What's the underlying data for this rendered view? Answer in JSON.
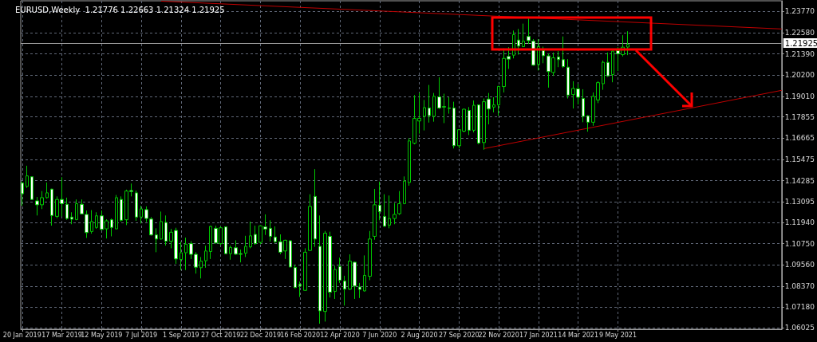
{
  "chart_data": {
    "type": "candlestick",
    "title": "EURUSD,Weekly  1.21776 1.22663 1.21324 1.21925",
    "color": "#00c800",
    "grid": true,
    "x": [
      "2019-01-20",
      "2019-01-27",
      "2019-02-03",
      "2019-02-10",
      "2019-02-17",
      "2019-02-24",
      "2019-03-03",
      "2019-03-10",
      "2019-03-17",
      "2019-03-24",
      "2019-03-31",
      "2019-04-07",
      "2019-04-14",
      "2019-04-21",
      "2019-04-28",
      "2019-05-05",
      "2019-05-12",
      "2019-05-19",
      "2019-05-26",
      "2019-06-02",
      "2019-06-09",
      "2019-06-16",
      "2019-06-23",
      "2019-06-30",
      "2019-07-07",
      "2019-07-14",
      "2019-07-21",
      "2019-07-28",
      "2019-08-04",
      "2019-08-11",
      "2019-08-18",
      "2019-08-25",
      "2019-09-01",
      "2019-09-08",
      "2019-09-15",
      "2019-09-22",
      "2019-09-29",
      "2019-10-06",
      "2019-10-13",
      "2019-10-20",
      "2019-10-27",
      "2019-11-03",
      "2019-11-10",
      "2019-11-17",
      "2019-11-24",
      "2019-12-01",
      "2019-12-08",
      "2019-12-15",
      "2019-12-22",
      "2019-12-29",
      "2020-01-05",
      "2020-01-12",
      "2020-01-19",
      "2020-01-26",
      "2020-02-02",
      "2020-02-09",
      "2020-02-16",
      "2020-02-23",
      "2020-03-01",
      "2020-03-08",
      "2020-03-15",
      "2020-03-22",
      "2020-03-29",
      "2020-04-05",
      "2020-04-12",
      "2020-04-19",
      "2020-04-26",
      "2020-05-03",
      "2020-05-10",
      "2020-05-17",
      "2020-05-24",
      "2020-05-31",
      "2020-06-07",
      "2020-06-14",
      "2020-06-21",
      "2020-06-28",
      "2020-07-05",
      "2020-07-12",
      "2020-07-19",
      "2020-07-26",
      "2020-08-02",
      "2020-08-09",
      "2020-08-16",
      "2020-08-23",
      "2020-08-30",
      "2020-09-06",
      "2020-09-13",
      "2020-09-20",
      "2020-09-27",
      "2020-10-04",
      "2020-10-11",
      "2020-10-18",
      "2020-10-25",
      "2020-11-01",
      "2020-11-08",
      "2020-11-15",
      "2020-11-22",
      "2020-11-29",
      "2020-12-06",
      "2020-12-13",
      "2020-12-20",
      "2020-12-27",
      "2021-01-03",
      "2021-01-10",
      "2021-01-17",
      "2021-01-24",
      "2021-01-31",
      "2021-02-07",
      "2021-02-14",
      "2021-02-21",
      "2021-02-28",
      "2021-03-07",
      "2021-03-14",
      "2021-03-21",
      "2021-03-28",
      "2021-04-04",
      "2021-04-11",
      "2021-04-18",
      "2021-04-25",
      "2021-05-02",
      "2021-05-09",
      "2021-05-16",
      "2021-05-23"
    ],
    "ohlc": [
      [
        1.1415,
        1.1423,
        1.1288,
        1.1355
      ],
      [
        1.1396,
        1.1512,
        1.1388,
        1.1455
      ],
      [
        1.145,
        1.1452,
        1.132,
        1.1323
      ],
      [
        1.1315,
        1.1337,
        1.1233,
        1.1293
      ],
      [
        1.1293,
        1.137,
        1.1269,
        1.1333
      ],
      [
        1.1333,
        1.1418,
        1.1328,
        1.136
      ],
      [
        1.1381,
        1.1383,
        1.1176,
        1.1233
      ],
      [
        1.1228,
        1.134,
        1.1218,
        1.1323
      ],
      [
        1.1323,
        1.1448,
        1.1228,
        1.1299
      ],
      [
        1.1296,
        1.1333,
        1.1209,
        1.1216
      ],
      [
        1.1224,
        1.1251,
        1.1184,
        1.1212
      ],
      [
        1.121,
        1.1323,
        1.1206,
        1.1299
      ],
      [
        1.1296,
        1.1323,
        1.124,
        1.1242
      ],
      [
        1.1239,
        1.1261,
        1.1107,
        1.1137
      ],
      [
        1.1143,
        1.1263,
        1.1131,
        1.1199
      ],
      [
        1.1166,
        1.1251,
        1.1158,
        1.1231
      ],
      [
        1.1231,
        1.1261,
        1.1149,
        1.1155
      ],
      [
        1.1158,
        1.1212,
        1.1104,
        1.1203
      ],
      [
        1.1209,
        1.1216,
        1.1116,
        1.1166
      ],
      [
        1.1158,
        1.1348,
        1.1156,
        1.1333
      ],
      [
        1.1323,
        1.134,
        1.1199,
        1.1206
      ],
      [
        1.1209,
        1.1378,
        1.1179,
        1.137
      ],
      [
        1.1373,
        1.1412,
        1.134,
        1.1367
      ],
      [
        1.136,
        1.1373,
        1.1203,
        1.1224
      ],
      [
        1.1224,
        1.1287,
        1.1188,
        1.127
      ],
      [
        1.1266,
        1.1284,
        1.1197,
        1.1216
      ],
      [
        1.1213,
        1.1224,
        1.112,
        1.1124
      ],
      [
        1.1124,
        1.1161,
        1.1027,
        1.1101
      ],
      [
        1.1101,
        1.1255,
        1.1098,
        1.1199
      ],
      [
        1.1194,
        1.1233,
        1.1064,
        1.1089
      ],
      [
        1.1089,
        1.1158,
        1.1049,
        1.1139
      ],
      [
        1.1149,
        1.1164,
        1.0962,
        1.0989
      ],
      [
        1.0986,
        1.1086,
        1.0927,
        1.1024
      ],
      [
        1.1024,
        1.1109,
        1.0927,
        1.1072
      ],
      [
        1.1075,
        1.1089,
        1.0989,
        1.1015
      ],
      [
        1.1015,
        1.1027,
        1.0907,
        1.0943
      ],
      [
        1.094,
        1.1,
        1.088,
        1.0977
      ],
      [
        1.0979,
        1.1064,
        1.094,
        1.1034
      ],
      [
        1.1031,
        1.1176,
        1.0989,
        1.1172
      ],
      [
        1.1161,
        1.1176,
        1.1075,
        1.1079
      ],
      [
        1.1075,
        1.1172,
        1.1067,
        1.1164
      ],
      [
        1.1169,
        1.1172,
        1.1016,
        1.1019
      ],
      [
        1.1019,
        1.1064,
        1.0985,
        1.1054
      ],
      [
        1.1052,
        1.1094,
        1.1012,
        1.1016
      ],
      [
        1.1019,
        1.1042,
        1.097,
        1.1015
      ],
      [
        1.1022,
        1.1119,
        1.1,
        1.106
      ],
      [
        1.1057,
        1.1199,
        1.1049,
        1.1119
      ],
      [
        1.1127,
        1.1176,
        1.1069,
        1.1075
      ],
      [
        1.1082,
        1.1178,
        1.1072,
        1.1175
      ],
      [
        1.1169,
        1.1239,
        1.1124,
        1.1157
      ],
      [
        1.1161,
        1.1206,
        1.1086,
        1.1116
      ],
      [
        1.1112,
        1.1172,
        1.1079,
        1.1086
      ],
      [
        1.1086,
        1.1127,
        1.1015,
        1.1027
      ],
      [
        1.1034,
        1.1097,
        1.0989,
        1.1094
      ],
      [
        1.1091,
        1.1094,
        1.0942,
        1.0944
      ],
      [
        1.0941,
        1.0957,
        1.0825,
        1.0829
      ],
      [
        1.0847,
        1.0862,
        1.0776,
        1.0837
      ],
      [
        1.0813,
        1.1049,
        1.081,
        1.1027
      ],
      [
        1.1037,
        1.1352,
        1.1034,
        1.1284
      ],
      [
        1.134,
        1.1493,
        1.1057,
        1.1101
      ],
      [
        1.106,
        1.1233,
        1.0626,
        1.0698
      ],
      [
        1.0695,
        1.1146,
        1.0638,
        1.1134
      ],
      [
        1.1116,
        1.1142,
        1.0773,
        1.0803
      ],
      [
        1.0807,
        1.0952,
        1.0765,
        1.093
      ],
      [
        1.0947,
        1.0997,
        1.0855,
        1.087
      ],
      [
        1.0865,
        1.0895,
        1.0728,
        1.082
      ],
      [
        1.082,
        1.1015,
        1.0815,
        1.0977
      ],
      [
        1.0971,
        1.0974,
        1.0765,
        1.0837
      ],
      [
        1.0832,
        1.0855,
        1.077,
        1.0818
      ],
      [
        1.081,
        1.1009,
        1.0806,
        1.0897
      ],
      [
        1.0892,
        1.1146,
        1.087,
        1.1101
      ],
      [
        1.1116,
        1.1382,
        1.1097,
        1.1293
      ],
      [
        1.1291,
        1.1423,
        1.1206,
        1.1255
      ],
      [
        1.1228,
        1.1352,
        1.1169,
        1.1173
      ],
      [
        1.1179,
        1.1345,
        1.1161,
        1.1216
      ],
      [
        1.1216,
        1.1303,
        1.1184,
        1.1239
      ],
      [
        1.1243,
        1.137,
        1.1236,
        1.1299
      ],
      [
        1.13,
        1.1452,
        1.1296,
        1.1426
      ],
      [
        1.1418,
        1.1666,
        1.14,
        1.1651
      ],
      [
        1.1638,
        1.1908,
        1.1632,
        1.1777
      ],
      [
        1.1763,
        1.192,
        1.1692,
        1.1778
      ],
      [
        1.1789,
        1.1881,
        1.171,
        1.1838
      ],
      [
        1.1836,
        1.1965,
        1.1754,
        1.1793
      ],
      [
        1.1789,
        1.192,
        1.1759,
        1.1901
      ],
      [
        1.1898,
        1.2008,
        1.183,
        1.1836
      ],
      [
        1.1844,
        1.1916,
        1.1751,
        1.1841
      ],
      [
        1.1836,
        1.1896,
        1.1804,
        1.1833
      ],
      [
        1.1836,
        1.1871,
        1.1609,
        1.1624
      ],
      [
        1.1624,
        1.1717,
        1.1609,
        1.1714
      ],
      [
        1.1706,
        1.1833,
        1.1699,
        1.1829
      ],
      [
        1.1822,
        1.1841,
        1.1684,
        1.1711
      ],
      [
        1.1711,
        1.1878,
        1.1699,
        1.1851
      ],
      [
        1.1853,
        1.1856,
        1.1632,
        1.1639
      ],
      [
        1.1642,
        1.1889,
        1.1602,
        1.1871
      ],
      [
        1.1886,
        1.192,
        1.1744,
        1.183
      ],
      [
        1.1841,
        1.1896,
        1.1811,
        1.1853
      ],
      [
        1.1853,
        1.196,
        1.1792,
        1.1957
      ],
      [
        1.1956,
        1.217,
        1.1923,
        1.2114
      ],
      [
        1.2125,
        1.2177,
        1.2055,
        1.211
      ],
      [
        1.2132,
        1.227,
        1.2114,
        1.2247
      ],
      [
        1.2217,
        1.2279,
        1.2135,
        1.2183
      ],
      [
        1.218,
        1.2309,
        1.2177,
        1.2211
      ],
      [
        1.2237,
        1.2337,
        1.2195,
        1.2214
      ],
      [
        1.2211,
        1.2222,
        1.2073,
        1.2076
      ],
      [
        1.208,
        1.2222,
        1.2046,
        1.218
      ],
      [
        1.2159,
        1.218,
        1.2087,
        1.2129
      ],
      [
        1.2128,
        1.214,
        1.195,
        1.204
      ],
      [
        1.2035,
        1.2147,
        1.2016,
        1.2117
      ],
      [
        1.2122,
        1.2155,
        1.2065,
        1.2107
      ],
      [
        1.2107,
        1.2237,
        1.2061,
        1.2068
      ],
      [
        1.2065,
        1.211,
        1.1889,
        1.1908
      ],
      [
        1.1911,
        1.1986,
        1.1833,
        1.1945
      ],
      [
        1.1943,
        1.1971,
        1.1856,
        1.1896
      ],
      [
        1.1889,
        1.1941,
        1.1756,
        1.1789
      ],
      [
        1.1792,
        1.1796,
        1.1703,
        1.1756
      ],
      [
        1.1756,
        1.1923,
        1.1736,
        1.1901
      ],
      [
        1.1881,
        1.1986,
        1.1863,
        1.1978
      ],
      [
        1.1972,
        1.2102,
        1.1938,
        1.2092
      ],
      [
        1.2092,
        1.2147,
        1.201,
        1.2016
      ],
      [
        1.2023,
        1.2158,
        1.198,
        1.2155
      ],
      [
        1.2158,
        1.2177,
        1.2043,
        1.214
      ],
      [
        1.2135,
        1.2244,
        1.2125,
        1.2177
      ],
      [
        1.21776,
        1.22663,
        1.21324,
        1.21925
      ]
    ],
    "series": [
      {
        "type": "line",
        "color": "#c00000",
        "x": [
          "2019-08-04",
          "2021-12-26"
        ],
        "values": [
          1.2435,
          1.2279
        ]
      },
      {
        "type": "line",
        "color": "#c00000",
        "x": [
          "2020-11-01",
          "2021-12-26"
        ],
        "values": [
          1.1608,
          1.1935
        ]
      }
    ],
    "xlim": [
      "2019-01-18",
      "2021-12-26"
    ],
    "xticks": [
      {
        "value": "2019-01-20",
        "label": "20 Jan 2019"
      },
      {
        "value": "2019-03-17",
        "label": "17 Mar 2019"
      },
      {
        "value": "2019-05-12",
        "label": "12 May 2019"
      },
      {
        "value": "2019-07-07",
        "label": "7 Jul 2019"
      },
      {
        "value": "2019-09-01",
        "label": "1 Sep 2019"
      },
      {
        "value": "2019-10-27",
        "label": "27 Oct 2019"
      },
      {
        "value": "2019-12-22",
        "label": "22 Dec 2019"
      },
      {
        "value": "2020-02-16",
        "label": "16 Feb 2020"
      },
      {
        "value": "2020-04-12",
        "label": "12 Apr 2020"
      },
      {
        "value": "2020-06-07",
        "label": "7 Jun 2020"
      },
      {
        "value": "2020-08-02",
        "label": "2 Aug 2020"
      },
      {
        "value": "2020-09-27",
        "label": "27 Sep 2020"
      },
      {
        "value": "2020-11-22",
        "label": "22 Nov 2020"
      },
      {
        "value": "2021-01-17",
        "label": "17 Jan 2021"
      },
      {
        "value": "2021-03-14",
        "label": "14 Mar 2021"
      },
      {
        "value": "2021-05-09",
        "label": "9 May 2021"
      }
    ],
    "ylim": [
      1.0595,
      1.2437
    ],
    "yticks": [
      {
        "value": 1.2377,
        "label": "1.23770"
      },
      {
        "value": 1.2258,
        "label": "1.22580"
      },
      {
        "value": 1.2139,
        "label": "1.21390"
      },
      {
        "value": 1.202,
        "label": "1.20200"
      },
      {
        "value": 1.1901,
        "label": "1.19010"
      },
      {
        "value": 1.17855,
        "label": "1.17855"
      },
      {
        "value": 1.16665,
        "label": "1.16665"
      },
      {
        "value": 1.15475,
        "label": "1.15475"
      },
      {
        "value": 1.14285,
        "label": "1.14285"
      },
      {
        "value": 1.13095,
        "label": "1.13095"
      },
      {
        "value": 1.1194,
        "label": "1.11940"
      },
      {
        "value": 1.1075,
        "label": "1.10750"
      },
      {
        "value": 1.0956,
        "label": "1.09560"
      },
      {
        "value": 1.0837,
        "label": "1.08370"
      },
      {
        "value": 1.0718,
        "label": "1.07180"
      },
      {
        "value": 1.06025,
        "label": "1.06025"
      }
    ],
    "ref_lines": [
      {
        "axis": "y",
        "value": 1.21925,
        "label": "1.21925",
        "color": "#a0a0a0"
      }
    ]
  }
}
